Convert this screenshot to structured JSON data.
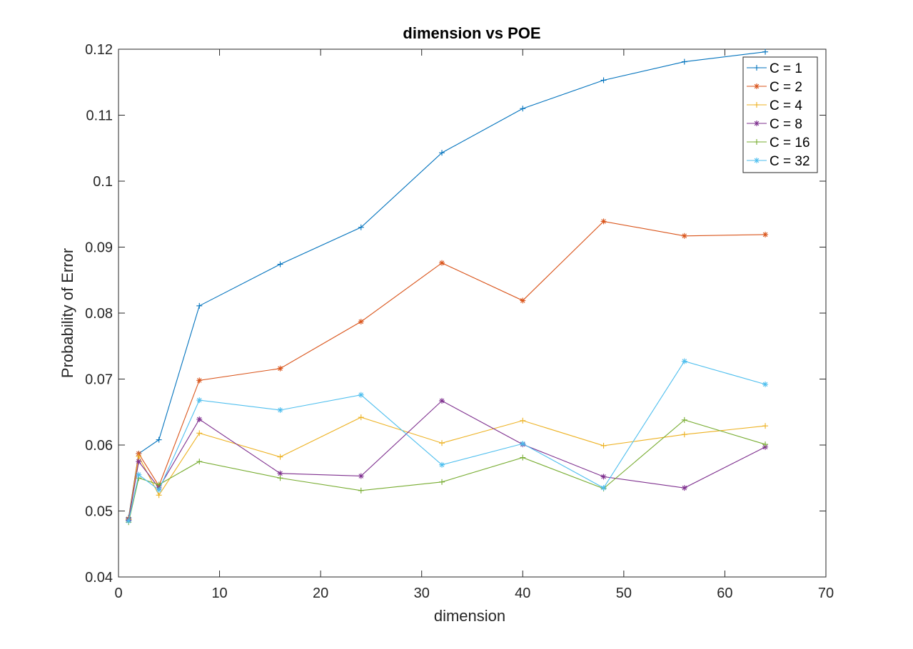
{
  "chart_data": {
    "type": "line",
    "title": "dimension vs POE",
    "xlabel": "dimension",
    "ylabel": "Probability of Error",
    "xlim": [
      0,
      70
    ],
    "ylim": [
      0.04,
      0.12
    ],
    "xticks": [
      "0",
      "10",
      "20",
      "30",
      "40",
      "50",
      "60",
      "70"
    ],
    "yticks": [
      "0.04",
      "0.05",
      "0.06",
      "0.07",
      "0.08",
      "0.09",
      "0.1",
      "0.11",
      "0.12"
    ],
    "grid": false,
    "legend_position": "top-right",
    "x": [
      1,
      2,
      4,
      8,
      16,
      24,
      32,
      40,
      48,
      56,
      64
    ],
    "series": [
      {
        "name": "C = 1",
        "marker": "+",
        "color": "#0072BD",
        "values": [
          0.049,
          0.0587,
          0.0608,
          0.0811,
          0.0874,
          0.093,
          0.1043,
          0.111,
          0.1153,
          0.1181,
          0.1196
        ]
      },
      {
        "name": "C = 2",
        "marker": "*",
        "color": "#D95319",
        "values": [
          0.0488,
          0.0587,
          0.0538,
          0.0698,
          0.0716,
          0.0787,
          0.0876,
          0.0819,
          0.0939,
          0.0917,
          0.0919
        ]
      },
      {
        "name": "C = 4",
        "marker": "+",
        "color": "#EDB120",
        "values": [
          0.0487,
          0.0583,
          0.0524,
          0.0618,
          0.0582,
          0.0642,
          0.0603,
          0.0637,
          0.0599,
          0.0616,
          0.0629
        ]
      },
      {
        "name": "C = 8",
        "marker": "*",
        "color": "#7E2F8E",
        "values": [
          0.0486,
          0.0575,
          0.0535,
          0.0639,
          0.0557,
          0.0553,
          0.0667,
          0.0601,
          0.0552,
          0.0535,
          0.0597
        ]
      },
      {
        "name": "C = 16",
        "marker": "+",
        "color": "#77AC30",
        "values": [
          0.0483,
          0.055,
          0.054,
          0.0575,
          0.055,
          0.0531,
          0.0544,
          0.0581,
          0.0534,
          0.0638,
          0.0601
        ]
      },
      {
        "name": "C = 32",
        "marker": "*",
        "color": "#4DBEEE",
        "values": [
          0.0485,
          0.0555,
          0.0532,
          0.0668,
          0.0653,
          0.0676,
          0.057,
          0.0602,
          0.0535,
          0.0727,
          0.0692
        ]
      }
    ]
  }
}
